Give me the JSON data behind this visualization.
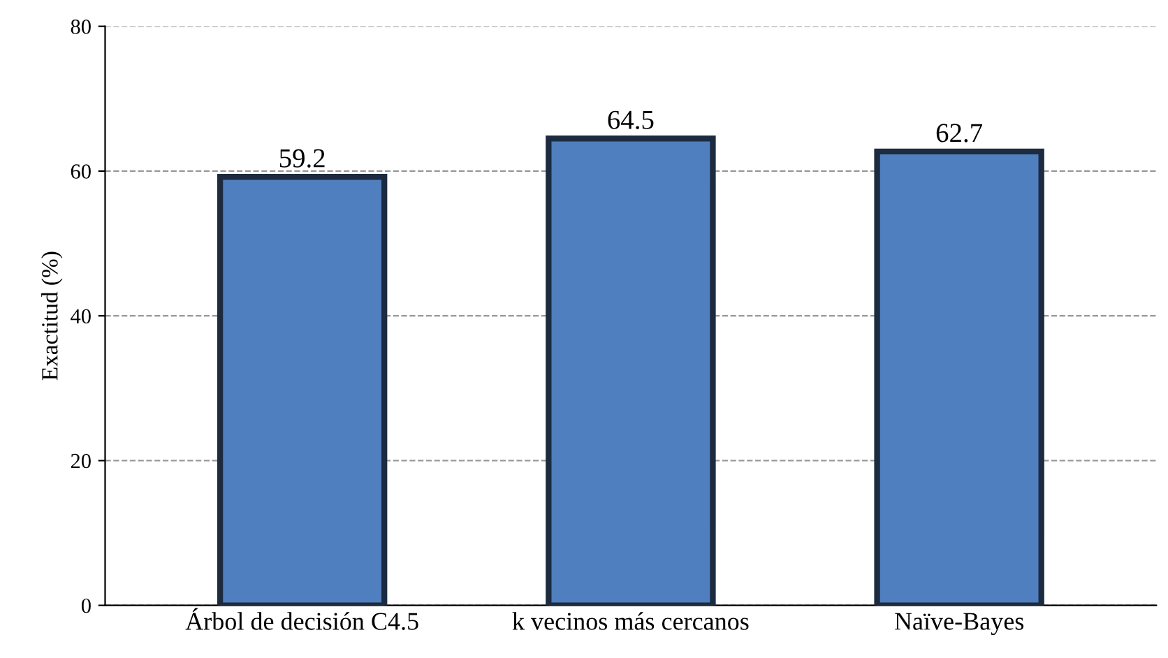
{
  "chart_data": {
    "type": "bar",
    "ylabel": "Exactitud (%)",
    "categories": [
      "Árbol de decisión C4.5",
      "k vecinos más cercanos",
      "Naïve-Bayes"
    ],
    "values": [
      59.2,
      64.5,
      62.7
    ],
    "color": "#4f7fbe",
    "ylim": [
      0,
      80
    ],
    "yticks": [
      0,
      20,
      40,
      60,
      80
    ],
    "grid": "y",
    "data_labels": true
  }
}
